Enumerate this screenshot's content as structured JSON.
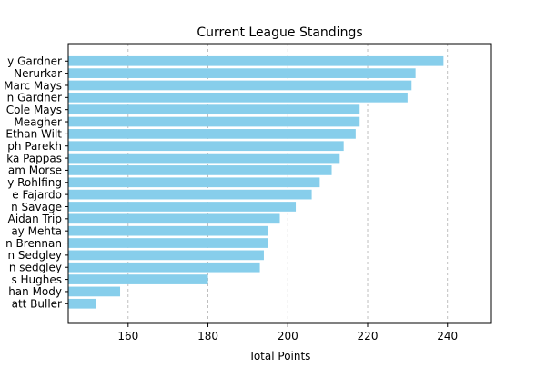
{
  "chart_data": {
    "type": "bar",
    "orientation": "horizontal",
    "title": "Current League Standings",
    "xlabel": "Total Points",
    "ylabel": "",
    "xlim": [
      145,
      251
    ],
    "xticks": [
      160,
      180,
      200,
      220,
      240
    ],
    "grid": "x-dashed",
    "bar_color": "#87ceeb",
    "categories": [
      "y Gardner",
      "Nerurkar",
      "Marc Mays",
      "n Gardner",
      "Cole Mays",
      "Meagher",
      "Ethan Wilt",
      "ph Parekh",
      "ka Pappas",
      "am Morse",
      "y Rohlfing",
      "e Fajardo",
      "n Savage",
      "Aidan Trip",
      "ay Mehta",
      "n Brennan",
      "n Sedgley",
      "n sedgley",
      "s Hughes",
      "han Mody",
      "att Buller"
    ],
    "values": [
      239,
      232,
      231,
      230,
      218,
      218,
      217,
      214,
      213,
      211,
      208,
      206,
      202,
      198,
      195,
      195,
      194,
      193,
      180,
      158,
      152
    ]
  }
}
